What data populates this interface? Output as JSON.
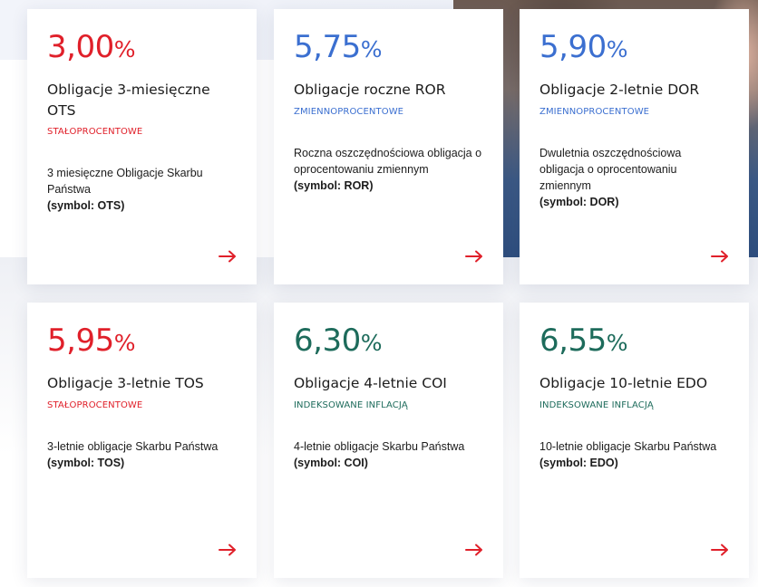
{
  "colors": {
    "red": "#e0202a",
    "blue": "#3b6fd0",
    "green": "#1d6b5b"
  },
  "cards": [
    {
      "rate": "3,00",
      "pct": "%",
      "title": "Obligacje 3-miesięczne OTS",
      "tag": "STAŁOPROCENTOWE",
      "desc": "3 miesięczne Obligacje Skarbu Państwa",
      "symbol": "(symbol: OTS)",
      "icon": "arrow-right-icon"
    },
    {
      "rate": "5,75",
      "pct": "%",
      "title": "Obligacje roczne ROR",
      "tag": "ZMIENNOPROCENTOWE",
      "desc": "Roczna oszczędnościowa obligacja o oprocentowaniu zmiennym",
      "symbol": "(symbol: ROR)",
      "icon": "arrow-right-icon"
    },
    {
      "rate": "5,90",
      "pct": "%",
      "title": "Obligacje 2-letnie DOR",
      "tag": "ZMIENNOPROCENTOWE",
      "desc": "Dwuletnia oszczędnościowa obligacja o oprocentowaniu zmiennym",
      "symbol": "(symbol: DOR)",
      "icon": "arrow-right-icon"
    },
    {
      "rate": "5,95",
      "pct": "%",
      "title": "Obligacje 3-letnie TOS",
      "tag": "STAŁOPROCENTOWE",
      "desc": "3-letnie obligacje Skarbu Państwa",
      "symbol": "(symbol: TOS)",
      "icon": "arrow-right-icon"
    },
    {
      "rate": "6,30",
      "pct": "%",
      "title": "Obligacje 4-letnie COI",
      "tag": "INDEKSOWANE INFLACJĄ",
      "desc": "4-letnie obligacje Skarbu Państwa",
      "symbol": "(symbol: COI)",
      "icon": "arrow-right-icon"
    },
    {
      "rate": "6,55",
      "pct": "%",
      "title": "Obligacje 10-letnie EDO",
      "tag": "INDEKSOWANE INFLACJĄ",
      "desc": "10-letnie obligacje Skarbu Państwa",
      "symbol": "(symbol: EDO)",
      "icon": "arrow-right-icon"
    }
  ]
}
